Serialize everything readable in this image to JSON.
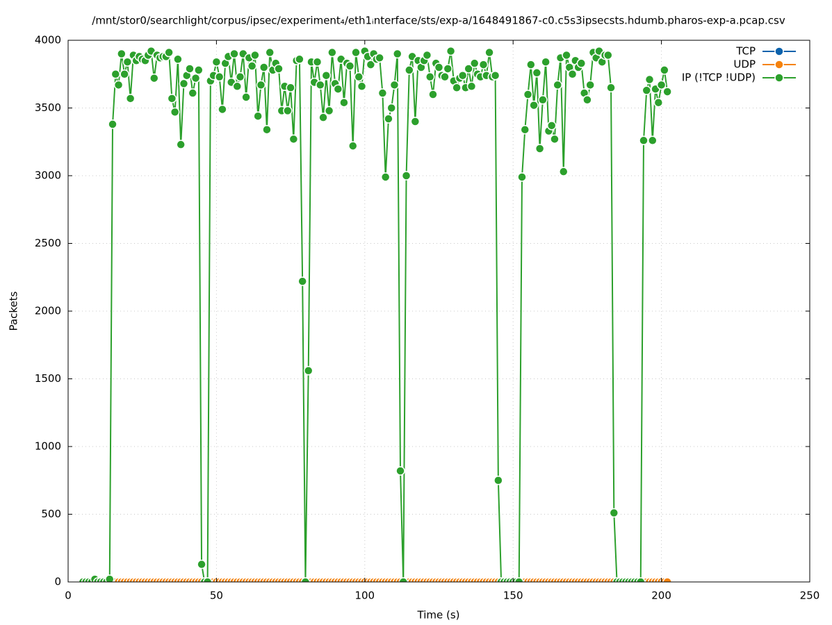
{
  "chart_data": {
    "type": "line",
    "title": "/mnt/stor0/searchlight/corpus/ipsec/experiment₄/eth1ᵢnterface/sts/exp-a/1648491867-c0.c5s3ipsecsts.hdumb.pharos-exp-a.pcap.csv",
    "x_label": "Time (s)",
    "y_label": "Packets",
    "xlim": [
      0,
      250
    ],
    "xticks": [
      0,
      50,
      100,
      150,
      200,
      250
    ],
    "ylim": [
      0,
      4000
    ],
    "yticks": [
      0,
      500,
      1000,
      1500,
      2000,
      2500,
      3000,
      3500,
      4000
    ],
    "grid": true,
    "legend": "top-right",
    "x": [
      5,
      6,
      7,
      8,
      9,
      10,
      11,
      12,
      13,
      14,
      15,
      16,
      17,
      18,
      19,
      20,
      21,
      22,
      23,
      24,
      25,
      26,
      27,
      28,
      29,
      30,
      31,
      32,
      33,
      34,
      35,
      36,
      37,
      38,
      39,
      40,
      41,
      42,
      43,
      44,
      45,
      46,
      47,
      48,
      49,
      50,
      51,
      52,
      53,
      54,
      55,
      56,
      57,
      58,
      59,
      60,
      61,
      62,
      63,
      64,
      65,
      66,
      67,
      68,
      69,
      70,
      71,
      72,
      73,
      74,
      75,
      76,
      77,
      78,
      79,
      80,
      81,
      82,
      83,
      84,
      85,
      86,
      87,
      88,
      89,
      90,
      91,
      92,
      93,
      94,
      95,
      96,
      97,
      98,
      99,
      100,
      101,
      102,
      103,
      104,
      105,
      106,
      107,
      108,
      109,
      110,
      111,
      112,
      113,
      114,
      115,
      116,
      117,
      118,
      119,
      120,
      121,
      122,
      123,
      124,
      125,
      126,
      127,
      128,
      129,
      130,
      131,
      132,
      133,
      134,
      135,
      136,
      137,
      138,
      139,
      140,
      141,
      142,
      143,
      144,
      145,
      146,
      147,
      148,
      149,
      150,
      151,
      152,
      153,
      154,
      155,
      156,
      157,
      158,
      159,
      160,
      161,
      162,
      163,
      164,
      165,
      166,
      167,
      168,
      169,
      170,
      171,
      172,
      173,
      174,
      175,
      176,
      177,
      178,
      179,
      180,
      181,
      182,
      183,
      184,
      185,
      186,
      187,
      188,
      189,
      190,
      191,
      192,
      193,
      194,
      195,
      196,
      197,
      198,
      199,
      200,
      201,
      202
    ],
    "series": [
      {
        "name": "TCP",
        "color": "#0b62ac",
        "values": [
          0,
          0,
          0,
          0,
          0,
          0,
          0,
          0,
          0,
          0,
          0,
          0,
          0,
          0,
          0,
          0,
          0,
          0,
          0,
          0,
          0,
          0,
          0,
          0,
          0,
          0,
          0,
          0,
          0,
          0,
          0,
          0,
          0,
          0,
          0,
          0,
          0,
          0,
          0,
          0,
          0,
          0,
          0,
          0,
          0,
          0,
          0,
          0,
          0,
          0,
          0,
          0,
          0,
          0,
          0,
          0,
          0,
          0,
          0,
          0,
          0,
          0,
          0,
          0,
          0,
          0,
          0,
          0,
          0,
          0,
          0,
          0,
          0,
          0,
          0,
          0,
          0,
          0,
          0,
          0,
          0,
          0,
          0,
          0,
          0,
          0,
          0,
          0,
          0,
          0,
          0,
          0,
          0,
          0,
          0,
          0,
          0,
          0,
          0,
          0,
          0,
          0,
          0,
          0,
          0,
          0,
          0,
          0,
          0,
          0,
          0,
          0,
          0,
          0,
          0,
          0,
          0,
          0,
          0,
          0,
          0,
          0,
          0,
          0,
          0,
          0,
          0,
          0,
          0,
          0,
          0,
          0,
          0,
          0,
          0,
          0,
          0,
          0,
          0,
          0,
          0,
          0,
          0,
          0,
          0,
          0,
          0,
          0,
          0,
          0,
          0,
          0,
          0,
          0,
          0,
          0,
          0,
          0,
          0,
          0,
          0,
          0,
          0,
          0,
          0,
          0,
          0,
          0,
          0,
          0,
          0,
          0,
          0,
          0,
          0,
          0,
          0,
          0,
          0,
          0,
          0,
          0,
          0,
          0,
          0,
          0,
          0,
          0,
          0,
          0,
          0,
          0,
          0,
          0,
          0,
          0,
          0,
          0
        ]
      },
      {
        "name": "UDP",
        "color": "#f5820d",
        "values": [
          0,
          0,
          0,
          0,
          0,
          0,
          0,
          0,
          0,
          0,
          0,
          0,
          0,
          0,
          0,
          0,
          0,
          0,
          0,
          0,
          0,
          0,
          0,
          0,
          0,
          0,
          0,
          0,
          0,
          0,
          0,
          0,
          0,
          0,
          0,
          0,
          0,
          0,
          0,
          0,
          0,
          0,
          0,
          0,
          0,
          0,
          0,
          0,
          0,
          0,
          0,
          0,
          0,
          0,
          0,
          0,
          0,
          0,
          0,
          0,
          0,
          0,
          0,
          0,
          0,
          0,
          0,
          0,
          0,
          0,
          0,
          0,
          0,
          0,
          0,
          0,
          0,
          0,
          0,
          0,
          0,
          0,
          0,
          0,
          0,
          0,
          0,
          0,
          0,
          0,
          0,
          0,
          0,
          0,
          0,
          0,
          0,
          0,
          0,
          0,
          0,
          0,
          0,
          0,
          0,
          0,
          0,
          0,
          0,
          0,
          0,
          0,
          0,
          0,
          0,
          0,
          0,
          0,
          0,
          0,
          0,
          0,
          0,
          0,
          0,
          0,
          0,
          0,
          0,
          0,
          0,
          0,
          0,
          0,
          0,
          0,
          0,
          0,
          0,
          0,
          0,
          0,
          0,
          0,
          0,
          0,
          0,
          0,
          0,
          0,
          0,
          0,
          0,
          0,
          0,
          0,
          0,
          0,
          0,
          0,
          0,
          0,
          0,
          0,
          0,
          0,
          0,
          0,
          0,
          0,
          0,
          0,
          0,
          0,
          0,
          0,
          0,
          0,
          0,
          0,
          0,
          0,
          0,
          0,
          0,
          0,
          0,
          0,
          0,
          0,
          0,
          0,
          0,
          0,
          0,
          0,
          0,
          0
        ]
      },
      {
        "name": "IP (!TCP  !UDP)",
        "color": "#2ca02c",
        "values": [
          0,
          0,
          0,
          0,
          20,
          0,
          0,
          0,
          0,
          20,
          3380,
          3750,
          3670,
          3900,
          3750,
          3840,
          3570,
          3890,
          3850,
          3880,
          3860,
          3850,
          3890,
          3920,
          3720,
          3890,
          3870,
          3880,
          3880,
          3910,
          3570,
          3470,
          3860,
          3230,
          3680,
          3740,
          3790,
          3610,
          3720,
          3780,
          130,
          0,
          0,
          3700,
          3740,
          3840,
          3730,
          3490,
          3830,
          3880,
          3690,
          3900,
          3660,
          3730,
          3900,
          3580,
          3870,
          3810,
          3890,
          3440,
          3670,
          3800,
          3340,
          3910,
          3780,
          3830,
          3790,
          3480,
          3660,
          3480,
          3650,
          3270,
          3850,
          3860,
          2220,
          0,
          1560,
          3840,
          3690,
          3840,
          3670,
          3430,
          3740,
          3480,
          3910,
          3680,
          3640,
          3860,
          3540,
          3830,
          3810,
          3220,
          3910,
          3730,
          3660,
          3920,
          3880,
          3820,
          3900,
          3860,
          3870,
          3610,
          2990,
          3420,
          3500,
          3670,
          3900,
          820,
          0,
          3000,
          3780,
          3880,
          3400,
          3850,
          3800,
          3850,
          3890,
          3730,
          3600,
          3830,
          3800,
          3740,
          3730,
          3790,
          3920,
          3700,
          3650,
          3720,
          3740,
          3650,
          3790,
          3660,
          3830,
          3750,
          3730,
          3820,
          3740,
          3910,
          3730,
          3740,
          750,
          0,
          0,
          0,
          0,
          0,
          0,
          0,
          2990,
          3340,
          3600,
          3820,
          3520,
          3760,
          3200,
          3560,
          3840,
          3330,
          3370,
          3270,
          3670,
          3870,
          3030,
          3890,
          3800,
          3750,
          3850,
          3800,
          3830,
          3610,
          3560,
          3670,
          3910,
          3870,
          3920,
          3840,
          3890,
          3890,
          3650,
          510,
          0,
          0,
          0,
          0,
          0,
          0,
          0,
          0,
          0,
          3260,
          3630,
          3710,
          3260,
          3640,
          3540,
          3670,
          3780,
          3620
        ]
      }
    ]
  }
}
